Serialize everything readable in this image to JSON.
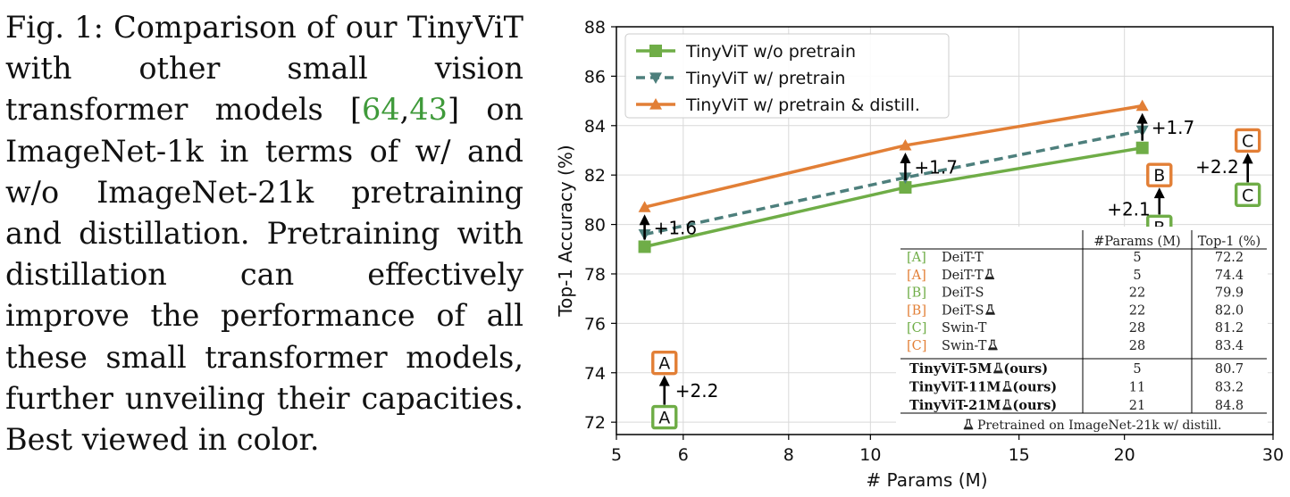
{
  "caption": {
    "label": "Fig. 1:",
    "text_a": "Comparison of our TinyViT with other small vision transformer models",
    "cite_open": "[",
    "cite1": "64",
    "cite_sep": ",",
    "cite2": "43",
    "cite_close": "]",
    "text_b": "on ImageNet-1k in terms of w/ and w/o ImageNet-21k pretraining and distillation. Pretraining with distillation can effectively improve the performance of all these small transformer models, further unveiling their capacities. Best viewed in color."
  },
  "colors": {
    "green": "#6fad47",
    "orange": "#e27f36",
    "teal": "#4d7f7c",
    "axis": "#000000",
    "grid": "#d9d9d9"
  },
  "chart_data": {
    "type": "line",
    "xlabel": "# Params (M)",
    "ylabel": "Top-1 Accuracy (%)",
    "xlim": [
      5,
      30
    ],
    "ylim": [
      71.5,
      88
    ],
    "xticks": [
      5,
      6,
      8,
      10,
      15,
      20,
      30
    ],
    "yticks": [
      72,
      74,
      76,
      78,
      80,
      82,
      84,
      86,
      88
    ],
    "x_scale": "log",
    "grid": true,
    "legend_position": "top-left",
    "series": [
      {
        "name": "TinyViT w/o pretrain",
        "color": "#6fad47",
        "marker": "square",
        "dash": false,
        "x": [
          5.4,
          11,
          21
        ],
        "y": [
          79.1,
          81.5,
          83.1
        ]
      },
      {
        "name": "TinyViT w/ pretrain",
        "color": "#4d7f7c",
        "marker": "triangle-down",
        "dash": true,
        "x": [
          5.4,
          11,
          21
        ],
        "y": [
          79.6,
          81.9,
          83.8
        ]
      },
      {
        "name": "TinyViT w/ pretrain & distill.",
        "color": "#e27f36",
        "marker": "triangle-up",
        "dash": false,
        "x": [
          5.4,
          11,
          21
        ],
        "y": [
          80.7,
          83.2,
          84.8
        ]
      }
    ],
    "improvements": [
      {
        "label": "+1.6",
        "x": 5.4,
        "y_from": 79.1,
        "y_to": 80.7
      },
      {
        "label": "+1.7",
        "x": 11,
        "y_from": 81.5,
        "y_to": 83.2
      },
      {
        "label": "+1.7",
        "x": 21,
        "y_from": 83.1,
        "y_to": 84.8
      }
    ],
    "boxed_points": [
      {
        "letter": "A",
        "x": 5.7,
        "y_from": 72.2,
        "y_to": 74.4,
        "gain": "+2.2"
      },
      {
        "letter": "B",
        "x": 22,
        "y_from": 79.9,
        "y_to": 82.0,
        "gain": "+2.1"
      },
      {
        "letter": "C",
        "x": 28,
        "y_from": 81.2,
        "y_to": 83.4,
        "gain": "+2.2"
      }
    ],
    "table": {
      "headers": [
        "",
        "#Params (M)",
        "Top-1 (%)"
      ],
      "rows": [
        {
          "tag": "[A]",
          "tag_color": "green",
          "model": "DeiT-T",
          "flask": false,
          "params": "5",
          "top1": "72.2"
        },
        {
          "tag": "[A]",
          "tag_color": "orange",
          "model": "DeiT-T",
          "flask": true,
          "params": "5",
          "top1": "74.4"
        },
        {
          "tag": "[B]",
          "tag_color": "green",
          "model": "DeiT-S",
          "flask": false,
          "params": "22",
          "top1": "79.9"
        },
        {
          "tag": "[B]",
          "tag_color": "orange",
          "model": "DeiT-S",
          "flask": true,
          "params": "22",
          "top1": "82.0"
        },
        {
          "tag": "[C]",
          "tag_color": "green",
          "model": "Swin-T",
          "flask": false,
          "params": "28",
          "top1": "81.2"
        },
        {
          "tag": "[C]",
          "tag_color": "orange",
          "model": "Swin-T",
          "flask": true,
          "params": "28",
          "top1": "83.4"
        }
      ],
      "ours": [
        {
          "model": "TinyViT-5M",
          "suffix": " (ours)",
          "params": "5",
          "top1": "80.7"
        },
        {
          "model": "TinyViT-11M",
          "suffix": " (ours)",
          "params": "11",
          "top1": "83.2"
        },
        {
          "model": "TinyViT-21M",
          "suffix": " (ours)",
          "params": "21",
          "top1": "84.8"
        }
      ],
      "footnote": "Pretrained on ImageNet-21k w/ distill.",
      "flask_icon": "flask-icon"
    }
  }
}
